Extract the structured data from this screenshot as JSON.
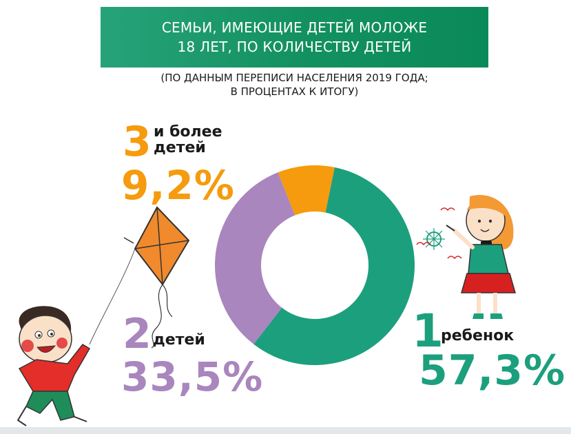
{
  "title_line1": "СЕМЬИ, ИМЕЮЩИЕ ДЕТЕЙ МОЛОЖЕ",
  "title_line2": "18 ЛЕТ, ПО КОЛИЧЕСТВУ ДЕТЕЙ",
  "subtitle_line1": "(ПО ДАННЫМ ПЕРЕПИСИ НАСЕЛЕНИЯ 2019 ГОДА;",
  "subtitle_line2": "В ПРОЦЕНТАХ К ИТОГУ)",
  "colors": {
    "one_child": "#1c9f7d",
    "two_children": "#a986bd",
    "three_plus": "#f59b0d",
    "banner": "#149161"
  },
  "chart_data": {
    "type": "pie",
    "donut": true,
    "slices": [
      {
        "digit": "1",
        "label": "ребенок",
        "value": 57.3,
        "value_label": "57,3%",
        "color": "#1c9f7d"
      },
      {
        "digit": "2",
        "label": "детей",
        "value": 33.5,
        "value_label": "33,5%",
        "color": "#a986bd"
      },
      {
        "digit": "3",
        "label_line1": "и более",
        "label_line2": "детей",
        "value": 9.2,
        "value_label": "9,2%",
        "color": "#f59b0d"
      }
    ]
  },
  "illustrations": [
    "kite-illustration",
    "boy-illustration",
    "girl-illustration"
  ]
}
